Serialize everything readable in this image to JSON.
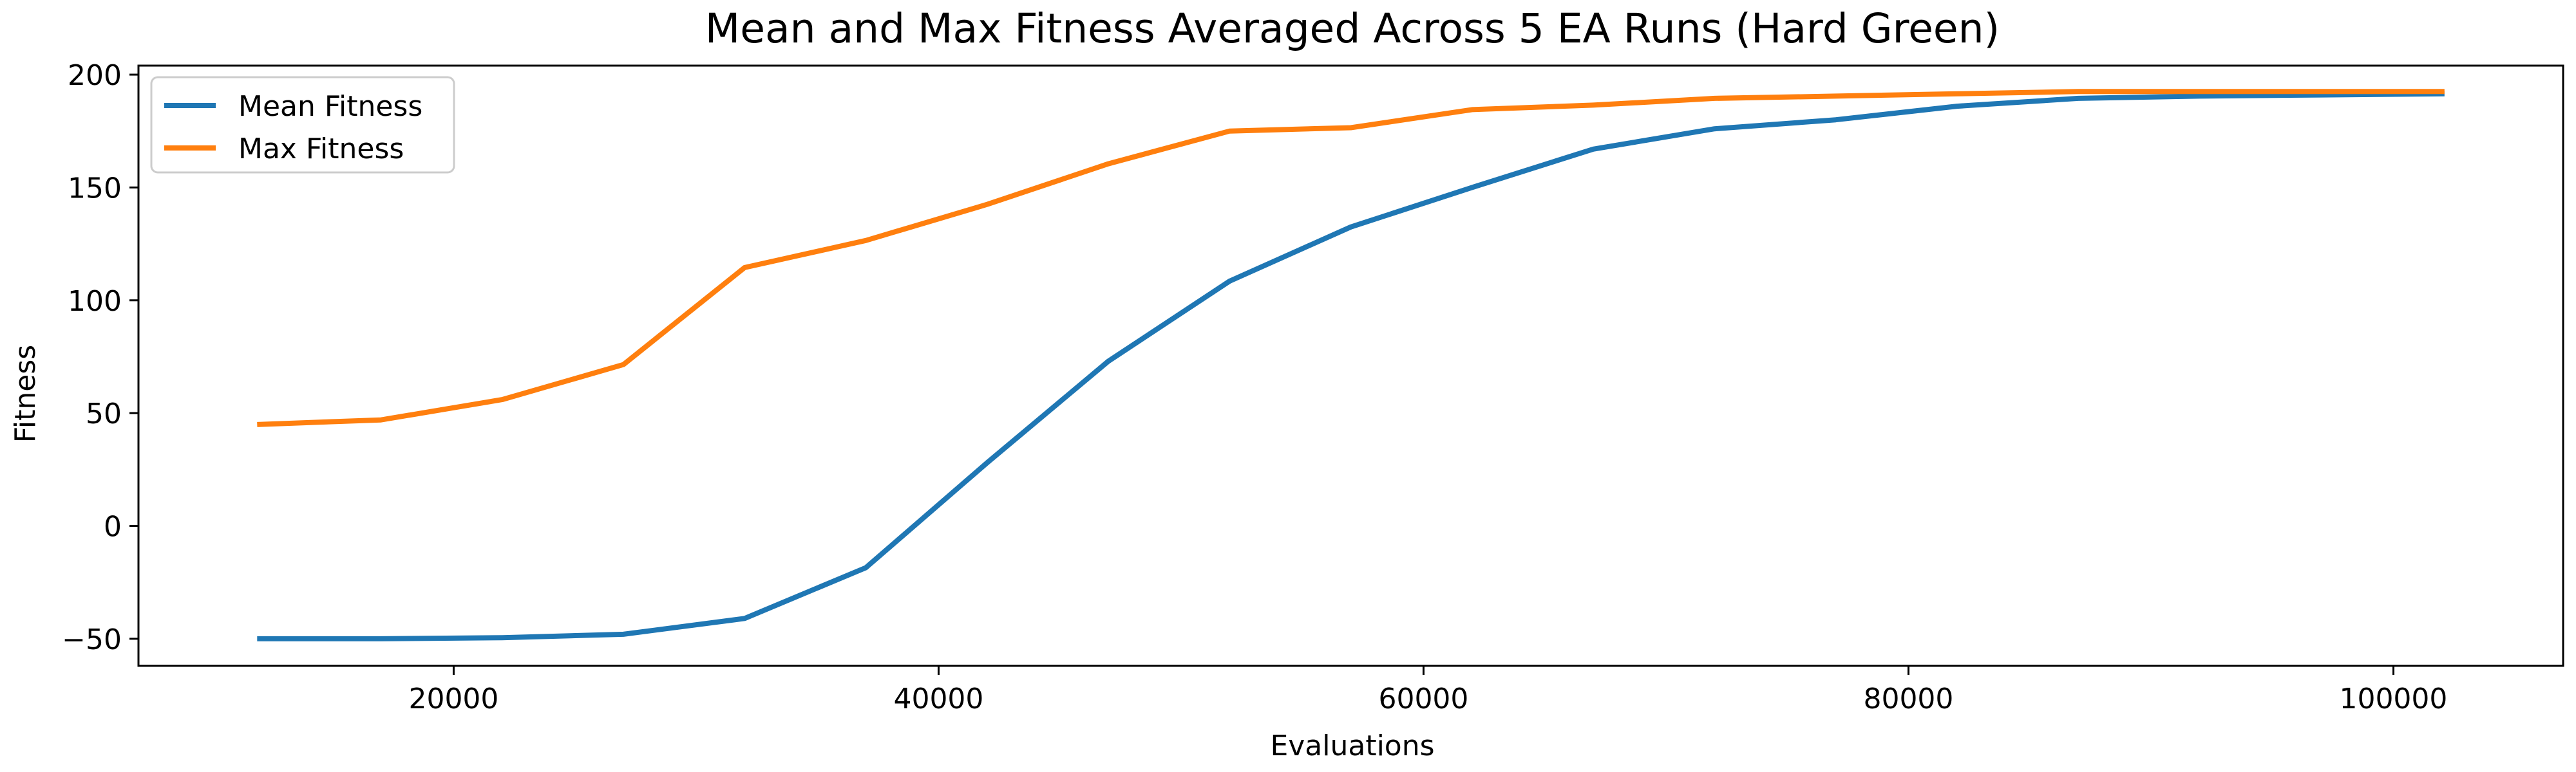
{
  "chart_data": {
    "type": "line",
    "title": "Mean and Max Fitness Averaged Across 5 EA Runs (Hard Green)",
    "xlabel": "Evaluations",
    "ylabel": "Fitness",
    "xlim": [
      7000,
      107000
    ],
    "ylim": [
      -62,
      204
    ],
    "xticks": [
      20000,
      40000,
      60000,
      80000,
      100000
    ],
    "yticks": [
      -50,
      0,
      50,
      100,
      150,
      200
    ],
    "grid": false,
    "legend_position": "top-left",
    "x": [
      12000,
      17000,
      22000,
      27000,
      32000,
      37000,
      42000,
      47000,
      52000,
      57000,
      62000,
      67000,
      72000,
      77000,
      82000,
      87000,
      92000,
      97000,
      102000
    ],
    "series": [
      {
        "name": "Mean Fitness",
        "color": "#1f77b4",
        "values": [
          -50,
          -50,
          -49.5,
          -48,
          -41,
          -18.5,
          28,
          73,
          108.5,
          132.5,
          150,
          167,
          176,
          180,
          186,
          189.5,
          190.5,
          191,
          191.5
        ]
      },
      {
        "name": "Max Fitness",
        "color": "#ff7f0e",
        "values": [
          45,
          47,
          56,
          71.5,
          114.5,
          126.5,
          142.5,
          160.5,
          175,
          176.5,
          184.5,
          186.5,
          189.5,
          190.5,
          191.5,
          192.5,
          192.5,
          192.5,
          192.5
        ]
      }
    ]
  }
}
